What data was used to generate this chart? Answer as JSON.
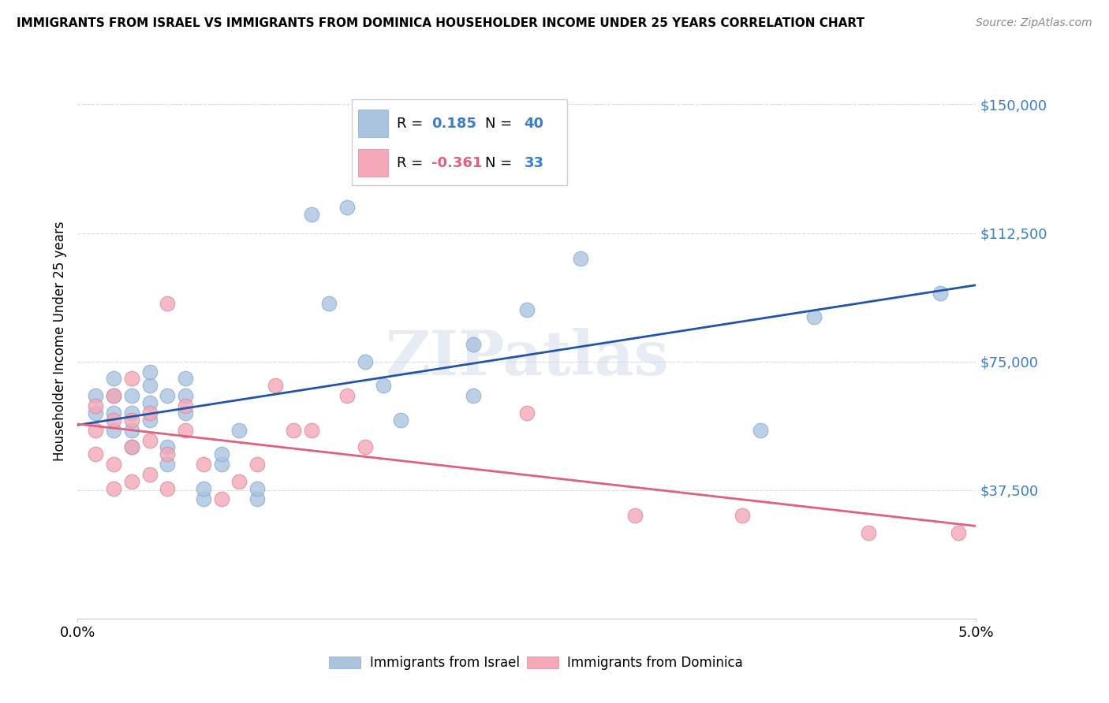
{
  "title": "IMMIGRANTS FROM ISRAEL VS IMMIGRANTS FROM DOMINICA HOUSEHOLDER INCOME UNDER 25 YEARS CORRELATION CHART",
  "source": "Source: ZipAtlas.com",
  "ylabel": "Householder Income Under 25 years",
  "xlim": [
    0.0,
    0.05
  ],
  "ylim": [
    0,
    162000
  ],
  "yticks": [
    37500,
    75000,
    112500,
    150000
  ],
  "ytick_labels": [
    "$37,500",
    "$75,000",
    "$112,500",
    "$150,000"
  ],
  "xticks": [
    0.0,
    0.05
  ],
  "xtick_labels": [
    "0.0%",
    "5.0%"
  ],
  "background_color": "#ffffff",
  "grid_color": "#dddddd",
  "israel_color": "#aac4e0",
  "dominica_color": "#f4a8b8",
  "israel_line_color": "#2255aa",
  "dominica_line_color": "#e06080",
  "israel_R": 0.185,
  "israel_N": 40,
  "dominica_R": -0.361,
  "dominica_N": 33,
  "israel_x": [
    0.001,
    0.001,
    0.002,
    0.002,
    0.002,
    0.002,
    0.003,
    0.003,
    0.003,
    0.003,
    0.004,
    0.004,
    0.004,
    0.004,
    0.005,
    0.005,
    0.005,
    0.006,
    0.006,
    0.006,
    0.007,
    0.007,
    0.008,
    0.008,
    0.009,
    0.01,
    0.01,
    0.013,
    0.014,
    0.015,
    0.016,
    0.017,
    0.018,
    0.022,
    0.022,
    0.025,
    0.028,
    0.038,
    0.041,
    0.048
  ],
  "israel_y": [
    60000,
    65000,
    55000,
    60000,
    65000,
    70000,
    50000,
    55000,
    60000,
    65000,
    58000,
    63000,
    68000,
    72000,
    45000,
    50000,
    65000,
    60000,
    65000,
    70000,
    35000,
    38000,
    45000,
    48000,
    55000,
    35000,
    38000,
    118000,
    92000,
    120000,
    75000,
    68000,
    58000,
    80000,
    65000,
    90000,
    105000,
    55000,
    88000,
    95000
  ],
  "dominica_x": [
    0.001,
    0.001,
    0.001,
    0.002,
    0.002,
    0.002,
    0.002,
    0.003,
    0.003,
    0.003,
    0.003,
    0.004,
    0.004,
    0.004,
    0.005,
    0.005,
    0.005,
    0.006,
    0.006,
    0.007,
    0.008,
    0.009,
    0.01,
    0.011,
    0.012,
    0.013,
    0.015,
    0.016,
    0.025,
    0.031,
    0.037,
    0.044,
    0.049
  ],
  "dominica_y": [
    48000,
    55000,
    62000,
    38000,
    45000,
    58000,
    65000,
    40000,
    50000,
    58000,
    70000,
    42000,
    52000,
    60000,
    38000,
    48000,
    92000,
    55000,
    62000,
    45000,
    35000,
    40000,
    45000,
    68000,
    55000,
    55000,
    65000,
    50000,
    60000,
    30000,
    30000,
    25000,
    25000
  ]
}
